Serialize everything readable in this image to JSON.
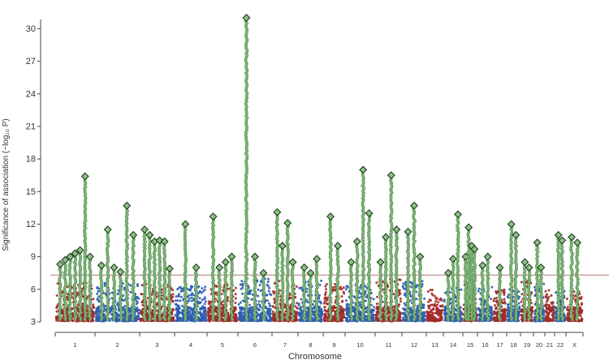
{
  "chart_data": {
    "type": "scatter",
    "xlabel": "Chromosome",
    "ylabel": "Significance of association (−log₁₀ P)",
    "ylim": [
      3,
      31
    ],
    "yticks": [
      3,
      6,
      9,
      12,
      15,
      18,
      21,
      24,
      27,
      30
    ],
    "threshold": 7.3,
    "grid": false,
    "colors": {
      "odd": "#a52a2a",
      "even": "#2f5fb3",
      "signal": "#8cc084",
      "signal_edge": "#2a6a2a",
      "threshold": "#c8a098",
      "axis": "#444444"
    },
    "chromosomes": [
      {
        "label": "1",
        "background_max": 6.6,
        "hits": [
          8.3,
          8.7,
          9.0,
          9.3,
          9.6,
          16.4,
          9.0
        ]
      },
      {
        "label": "2",
        "background_max": 6.8,
        "hits": [
          8.2,
          11.5,
          8.0,
          7.6,
          13.7,
          11.0
        ]
      },
      {
        "label": "3",
        "background_max": 6.5,
        "hits": [
          11.5,
          11.0,
          10.4,
          10.5,
          10.4,
          7.9
        ]
      },
      {
        "label": "4",
        "background_max": 6.3,
        "hits": [
          12.0,
          8.0
        ]
      },
      {
        "label": "5",
        "background_max": 6.6,
        "hits": [
          12.7,
          8.0,
          8.5,
          9.0
        ]
      },
      {
        "label": "6",
        "background_max": 7.0,
        "hits": [
          31.0,
          9.0,
          7.5
        ]
      },
      {
        "label": "7",
        "background_max": 6.8,
        "hits": [
          13.1,
          10.0,
          12.1,
          8.5
        ]
      },
      {
        "label": "8",
        "background_max": 6.9,
        "hits": [
          8.0,
          7.5,
          8.8
        ]
      },
      {
        "label": "9",
        "background_max": 6.5,
        "hits": [
          12.7,
          10.0
        ]
      },
      {
        "label": "10",
        "background_max": 6.4,
        "hits": [
          8.5,
          10.4,
          17.0,
          13.0
        ]
      },
      {
        "label": "11",
        "background_max": 7.0,
        "hits": [
          8.5,
          10.8,
          16.5,
          11.5
        ]
      },
      {
        "label": "12",
        "background_max": 6.8,
        "hits": [
          11.3,
          13.7,
          9.0
        ]
      },
      {
        "label": "13",
        "background_max": 6.0,
        "hits": []
      },
      {
        "label": "14",
        "background_max": 6.2,
        "hits": [
          7.5,
          8.8,
          12.9
        ]
      },
      {
        "label": "15",
        "background_max": 6.8,
        "hits": [
          9.0,
          11.7,
          10.0,
          9.7
        ]
      },
      {
        "label": "16",
        "background_max": 6.3,
        "hits": [
          8.2,
          9.0
        ]
      },
      {
        "label": "17",
        "background_max": 6.0,
        "hits": [
          8.0
        ]
      },
      {
        "label": "18",
        "background_max": 6.0,
        "hits": [
          12.0,
          11.0
        ]
      },
      {
        "label": "19",
        "background_max": 6.8,
        "hits": [
          8.5,
          8.0
        ]
      },
      {
        "label": "20",
        "background_max": 6.5,
        "hits": [
          10.3,
          8.0
        ]
      },
      {
        "label": "21",
        "background_max": 6.0,
        "hits": []
      },
      {
        "label": "22",
        "background_max": 6.2,
        "hits": [
          11.0,
          10.5
        ]
      },
      {
        "label": "X",
        "background_max": 5.8,
        "hits": [
          10.8,
          10.3
        ]
      }
    ]
  }
}
